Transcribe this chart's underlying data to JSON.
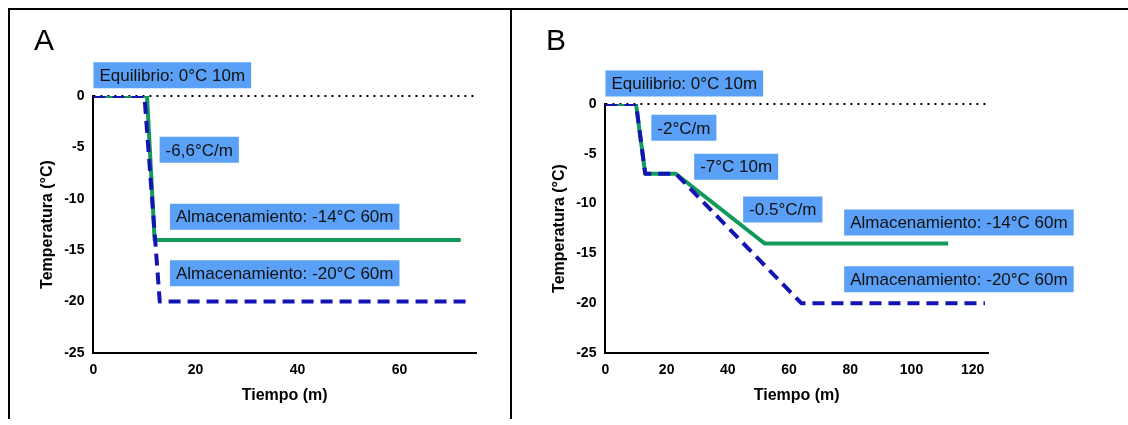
{
  "chart_data": [
    {
      "type": "line",
      "title": "A",
      "xlabel": "Tiempo (m)",
      "ylabel": "Temperatura (°C)",
      "xlim": [
        0,
        75
      ],
      "xticks": [
        0,
        20,
        40,
        60
      ],
      "ylim": [
        -25,
        0
      ],
      "yticks": [
        -25,
        -20,
        -15,
        -10,
        -5,
        0
      ],
      "grid": false,
      "marker": "none",
      "series": [
        {
          "color": "#13995c",
          "line_style": "solid",
          "x": [
            0,
            10.5,
            12,
            72
          ],
          "values": [
            0,
            0,
            -14,
            -14
          ]
        },
        {
          "color": "#1414b4",
          "line_style": "dashed",
          "x": [
            0,
            10,
            13,
            73
          ],
          "values": [
            0,
            0,
            -20,
            -20
          ]
        }
      ],
      "ref_lines": [
        {
          "axis": "y",
          "value": 0,
          "color": "#000000",
          "line_style": "dotted"
        }
      ],
      "annotations": [
        "Equilibrio: 0°C 10m",
        "-6,6°C/m",
        "Almacenamiento: -14°C 60m",
        "Almacenamiento: -20°C 60m"
      ]
    },
    {
      "type": "line",
      "title": "B",
      "xlabel": "Tiempo (m)",
      "ylabel": "Temperatura (°C)",
      "xlim": [
        0,
        125
      ],
      "xticks": [
        0,
        20,
        40,
        60,
        80,
        100,
        120
      ],
      "ylim": [
        -25,
        0
      ],
      "yticks": [
        -25,
        -20,
        -15,
        -10,
        -5,
        0
      ],
      "grid": false,
      "marker": "none",
      "series": [
        {
          "color": "#13995c",
          "line_style": "solid",
          "x": [
            0,
            10,
            13,
            23,
            52,
            112
          ],
          "values": [
            0,
            0,
            -7,
            -7,
            -14,
            -14
          ]
        },
        {
          "color": "#1414b4",
          "line_style": "dashed",
          "x": [
            0,
            10,
            13,
            23,
            64,
            124
          ],
          "values": [
            0,
            0,
            -7,
            -7,
            -20,
            -20
          ]
        }
      ],
      "ref_lines": [
        {
          "axis": "y",
          "value": 0,
          "color": "#000000",
          "line_style": "dotted"
        }
      ],
      "annotations": [
        "Equilibrio: 0°C 10m",
        "-2°C/m",
        "-7°C 10m",
        "-0.5°C/m",
        "Almacenamiento: -14°C 60m",
        "Almacenamiento: -20°C 60m"
      ]
    }
  ]
}
